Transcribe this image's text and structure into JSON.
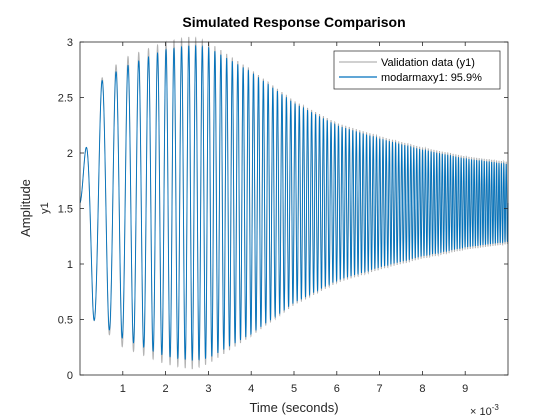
{
  "chart_data": {
    "type": "line",
    "title": "Simulated Response Comparison",
    "xlabel": "Time (seconds)",
    "ylabel": "Amplitude",
    "channel_label": "y1",
    "x_multiplier_base": "× 10",
    "x_multiplier_exp": "-3",
    "xlim": [
      0,
      0.01
    ],
    "ylim": [
      0,
      3
    ],
    "x_ticks": [
      0.001,
      0.002,
      0.003,
      0.004,
      0.005,
      0.006,
      0.007,
      0.008,
      0.009
    ],
    "x_tick_labels": [
      "1",
      "2",
      "3",
      "4",
      "5",
      "6",
      "7",
      "8",
      "9"
    ],
    "y_ticks": [
      0,
      0.5,
      1,
      1.5,
      2,
      2.5,
      3
    ],
    "y_tick_labels": [
      "0",
      "0.5",
      "1",
      "1.5",
      "2",
      "2.5",
      "3"
    ],
    "grid": false,
    "legend_position": "top-right",
    "series": [
      {
        "name": "Validation data (y1)",
        "color": "#b3b3b3",
        "center": 1.55,
        "envelope": [
          [
            0,
            0.05
          ],
          [
            0.0003,
            1.05
          ],
          [
            0.001,
            1.3
          ],
          [
            0.002,
            1.45
          ],
          [
            0.0026,
            1.5
          ],
          [
            0.003,
            1.45
          ],
          [
            0.004,
            1.2
          ],
          [
            0.005,
            0.92
          ],
          [
            0.006,
            0.72
          ],
          [
            0.007,
            0.6
          ],
          [
            0.008,
            0.5
          ],
          [
            0.009,
            0.42
          ],
          [
            0.01,
            0.37
          ]
        ],
        "start_frequency_hz": 2000,
        "end_frequency_hz": 18000
      },
      {
        "name": "modarmaxy1: 95.9%",
        "color": "#0072bd",
        "center": 1.55,
        "envelope": [
          [
            0,
            0.05
          ],
          [
            0.0003,
            1.05
          ],
          [
            0.001,
            1.22
          ],
          [
            0.002,
            1.38
          ],
          [
            0.0026,
            1.42
          ],
          [
            0.003,
            1.4
          ],
          [
            0.004,
            1.18
          ],
          [
            0.005,
            0.9
          ],
          [
            0.006,
            0.7
          ],
          [
            0.007,
            0.58
          ],
          [
            0.008,
            0.48
          ],
          [
            0.009,
            0.4
          ],
          [
            0.01,
            0.35
          ]
        ],
        "start_frequency_hz": 2000,
        "end_frequency_hz": 18000
      }
    ]
  },
  "colors": {
    "axes": "#262626",
    "text": "#262626",
    "background": "#ffffff"
  }
}
